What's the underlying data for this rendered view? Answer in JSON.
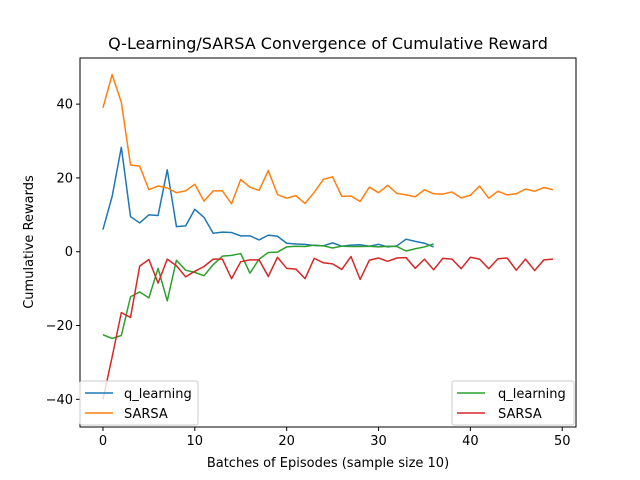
{
  "chart_data": {
    "type": "line",
    "title": "Q-Learning/SARSA Convergence of Cumulative Reward",
    "xlabel": "Batches of Episodes (sample size 10)",
    "ylabel": "Cumulative Rewards",
    "xlim": [
      -2.5,
      51.5
    ],
    "ylim": [
      -47.5,
      52.5
    ],
    "xticks": [
      0,
      10,
      20,
      30,
      40,
      50
    ],
    "yticks": [
      -40,
      -20,
      0,
      20,
      40
    ],
    "grid": false,
    "legend": [
      {
        "placement": "lower-left",
        "entries": [
          "q_learning",
          "SARSA"
        ]
      },
      {
        "placement": "lower-right",
        "entries": [
          "q_learning",
          "SARSA"
        ]
      }
    ],
    "series": [
      {
        "name": "q_learning",
        "color": "#1f77b4",
        "x": [
          0,
          1,
          2,
          3,
          4,
          5,
          6,
          7,
          8,
          9,
          10,
          11,
          12,
          13,
          14,
          15,
          16,
          17,
          18,
          19,
          20,
          21,
          22,
          23,
          24,
          25,
          26,
          27,
          28,
          29,
          30,
          31,
          32,
          33,
          34,
          35,
          36
        ],
        "values": [
          6,
          15,
          28.3,
          9.5,
          7.8,
          10,
          9.8,
          22.2,
          6.8,
          7,
          11.5,
          9.3,
          5,
          5.3,
          5.2,
          4.3,
          4.3,
          3.2,
          4.5,
          4.2,
          2.3,
          2.1,
          2,
          1.7,
          1.6,
          2.4,
          1.5,
          1.8,
          1.9,
          1.5,
          2,
          1.3,
          1.6,
          3.4,
          2.8,
          2.3,
          1.3
        ]
      },
      {
        "name": "SARSA",
        "color": "#ff7f0e",
        "x": [
          0,
          1,
          2,
          3,
          4,
          5,
          6,
          7,
          8,
          9,
          10,
          11,
          12,
          13,
          14,
          15,
          16,
          17,
          18,
          19,
          20,
          21,
          22,
          23,
          24,
          25,
          26,
          27,
          28,
          29,
          30,
          31,
          32,
          33,
          34,
          35,
          36,
          37,
          38,
          39,
          40,
          41,
          42,
          43,
          44,
          45,
          46,
          47,
          48,
          49
        ],
        "values": [
          39,
          48,
          40.5,
          23.5,
          23.2,
          16.8,
          17.8,
          17.3,
          16,
          16.5,
          18.3,
          13.7,
          16.5,
          16.5,
          13,
          19.6,
          17.5,
          16.6,
          22,
          15.5,
          14.5,
          15.2,
          13.1,
          16.1,
          19.6,
          20.3,
          15,
          15.1,
          13.6,
          17.5,
          16,
          18,
          15.8,
          15.4,
          14.9,
          16.8,
          15.7,
          15.6,
          16.2,
          14.6,
          15.3,
          17.8,
          14.5,
          16.4,
          15.4,
          15.7,
          17,
          16.4,
          17.4,
          16.8
        ]
      },
      {
        "name": "q_learning",
        "color": "#2ca02c",
        "x": [
          0,
          1,
          2,
          3,
          4,
          5,
          6,
          7,
          8,
          9,
          10,
          11,
          12,
          13,
          14,
          15,
          16,
          17,
          18,
          19,
          20,
          21,
          22,
          23,
          24,
          25,
          26,
          27,
          28,
          29,
          30,
          31,
          32,
          33,
          34,
          35,
          36
        ],
        "values": [
          -22.5,
          -23.5,
          -22.7,
          -12.2,
          -10.9,
          -12.5,
          -4.5,
          -13.3,
          -2.3,
          -5,
          -5.6,
          -6.5,
          -3.5,
          -1.2,
          -1,
          -0.5,
          -5.8,
          -2,
          -0.2,
          -0.1,
          1.3,
          1.5,
          1.4,
          1.8,
          1.6,
          1,
          1.5,
          1.4,
          1.4,
          1.5,
          1.3,
          1.5,
          1.4,
          0.2,
          0.8,
          1.3,
          2.1
        ]
      },
      {
        "name": "SARSA",
        "color": "#d62728",
        "x": [
          0,
          1,
          2,
          3,
          4,
          5,
          6,
          7,
          8,
          9,
          10,
          11,
          12,
          13,
          14,
          15,
          16,
          17,
          18,
          19,
          20,
          21,
          22,
          23,
          24,
          25,
          26,
          27,
          28,
          29,
          30,
          31,
          32,
          33,
          34,
          35,
          36,
          37,
          38,
          39,
          40,
          41,
          42,
          43,
          44,
          45,
          46,
          47,
          48,
          49
        ],
        "values": [
          -40,
          -28.5,
          -16.5,
          -17.8,
          -3.9,
          -2.1,
          -8.5,
          -2,
          -3.8,
          -6.8,
          -5.3,
          -4,
          -2,
          -2,
          -7.3,
          -2.7,
          -2.2,
          -2.2,
          -6.7,
          -1.5,
          -4.5,
          -4.7,
          -7.3,
          -1.8,
          -3,
          -3.3,
          -4.8,
          -1.3,
          -7.5,
          -2.3,
          -1.7,
          -2.6,
          -1.7,
          -1.6,
          -4.5,
          -2,
          -4.9,
          -1.8,
          -2,
          -4.6,
          -1.5,
          -2,
          -4.6,
          -1.9,
          -1.7,
          -5,
          -2,
          -5.1,
          -2.2,
          -2
        ]
      }
    ]
  }
}
